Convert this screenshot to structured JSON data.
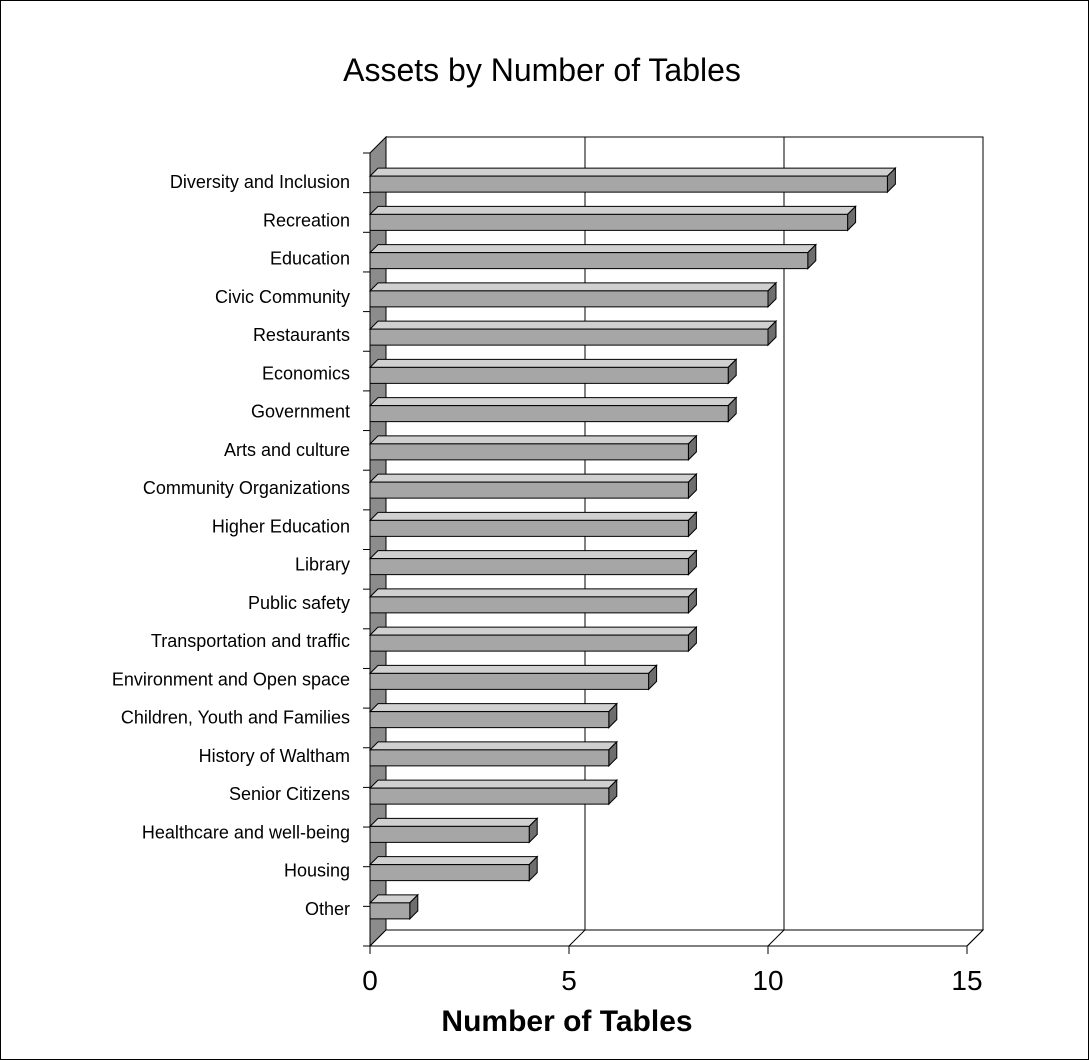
{
  "chart_data": {
    "type": "bar",
    "orientation": "horizontal",
    "title": "Assets by Number of Tables",
    "xlabel": "Number of Tables",
    "ylabel": "",
    "xlim": [
      0,
      15
    ],
    "xticks": [
      "0",
      "5",
      "10",
      "15"
    ],
    "grid": true,
    "legend": "none",
    "categories": [
      "Diversity and Inclusion",
      "Recreation",
      "Education",
      "Civic Community",
      "Restaurants",
      "Economics",
      "Government",
      "Arts and culture",
      "Community Organizations",
      "Higher Education",
      "Library",
      "Public safety",
      "Transportation and traffic",
      "Environment and Open space",
      "Children, Youth and Families",
      "History of Waltham",
      "Senior Citizens",
      "Healthcare and well-being",
      "Housing",
      "Other"
    ],
    "values": [
      13,
      12,
      11,
      10,
      10,
      9,
      9,
      8,
      8,
      8,
      8,
      8,
      8,
      7,
      6,
      6,
      6,
      4,
      4,
      1
    ],
    "colors": {
      "bar_front": "#a6a6a6",
      "bar_top": "#d0d0d0",
      "bar_side": "#6e6e6e",
      "wall": "#8c8c8c"
    }
  }
}
